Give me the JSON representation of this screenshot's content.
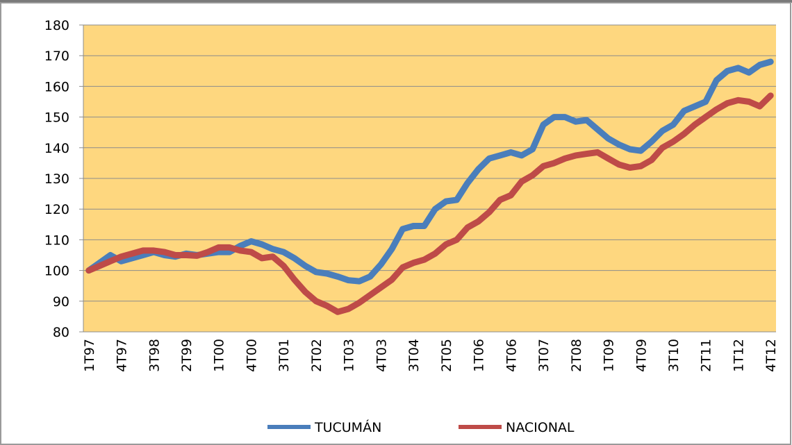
{
  "chart_data": {
    "type": "line",
    "categories": [
      "1T97",
      null,
      null,
      "4T97",
      null,
      null,
      "3T98",
      null,
      null,
      "2T99",
      null,
      null,
      "1T00",
      null,
      null,
      "4T00",
      null,
      null,
      "3T01",
      null,
      null,
      "2T02",
      null,
      null,
      "1T03",
      null,
      null,
      "4T03",
      null,
      null,
      "3T04",
      null,
      null,
      "2T05",
      null,
      null,
      "1T06",
      null,
      null,
      "4T06",
      null,
      null,
      "3T07",
      null,
      null,
      "2T08",
      null,
      null,
      "1T09",
      null,
      null,
      "4T09",
      null,
      null,
      "3T10",
      null,
      null,
      "2T11",
      null,
      null,
      "1T12",
      null,
      null,
      "4T12"
    ],
    "series": [
      {
        "name": "TUCUMÁN",
        "color": "#4a7ebb",
        "values": [
          100,
          102.5,
          105,
          103,
          104,
          105,
          106,
          105,
          104.5,
          105.5,
          105,
          105.5,
          106,
          106,
          108,
          109.5,
          108.5,
          107,
          106,
          104,
          101.5,
          99.5,
          99,
          98,
          96.8,
          96.5,
          98,
          102,
          107,
          113.5,
          114.5,
          114.5,
          120,
          122.5,
          123,
          128.5,
          133,
          136.5,
          137.5,
          138.5,
          137.5,
          139.5,
          147.5,
          150,
          150,
          148.5,
          149,
          146,
          143,
          141,
          139.5,
          139,
          142,
          145.5,
          147.5,
          152,
          153.5,
          155,
          162,
          165,
          166,
          164.5,
          167,
          168
        ]
      },
      {
        "name": "NACIONAL",
        "color": "#be4b48",
        "values": [
          100,
          101.5,
          103,
          104.5,
          105.5,
          106.5,
          106.5,
          106,
          105,
          105,
          104.8,
          106,
          107.5,
          107.5,
          106.5,
          106,
          104,
          104.5,
          101.5,
          97,
          93,
          90,
          88.5,
          86.5,
          87.5,
          89.5,
          92,
          94.5,
          97,
          101,
          102.5,
          103.5,
          105.5,
          108.5,
          110,
          114,
          116,
          119,
          123,
          124.5,
          129,
          131,
          134,
          135,
          136.5,
          137.5,
          138,
          138.5,
          136.5,
          134.5,
          133.5,
          134,
          136,
          140,
          142,
          144.5,
          147.5,
          150,
          152.5,
          154.5,
          155.5,
          155,
          153.5,
          157
        ]
      }
    ],
    "ylim": [
      80,
      180
    ],
    "yticks": [
      80,
      90,
      100,
      110,
      120,
      130,
      140,
      150,
      160,
      170,
      180
    ],
    "grid": true,
    "plot_background": "#fed77f",
    "legend": "bottom"
  }
}
